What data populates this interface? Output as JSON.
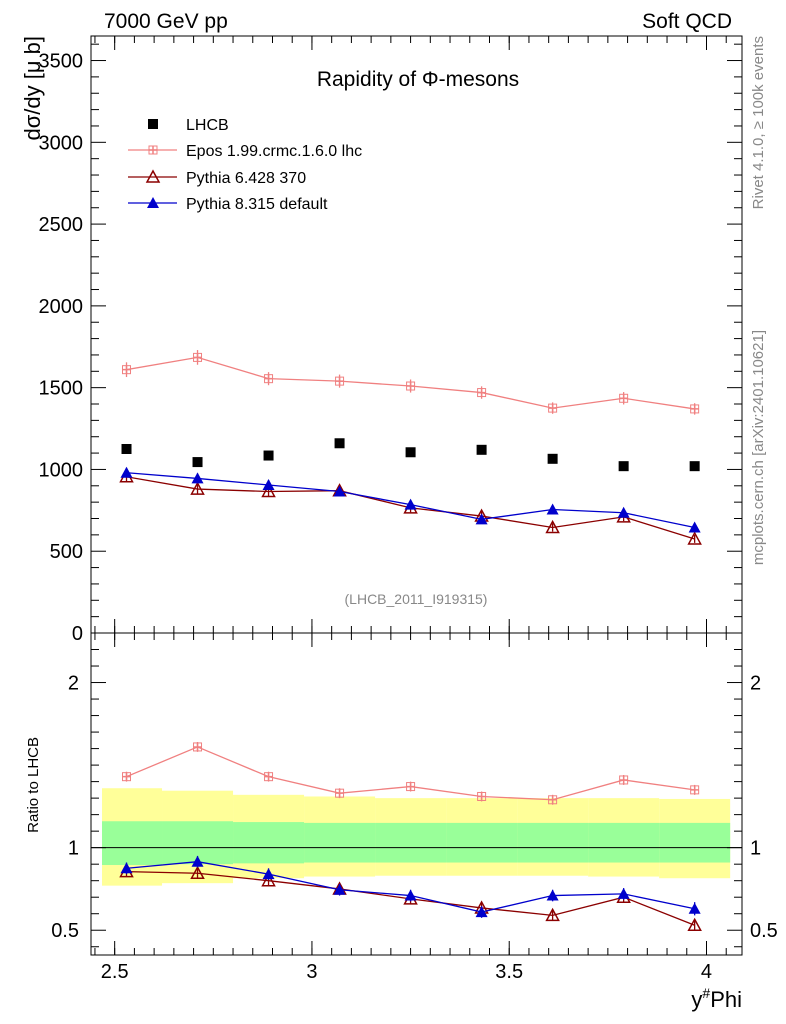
{
  "header": {
    "left": "7000 GeV pp",
    "right": "Soft QCD"
  },
  "side": {
    "rivet": "Rivet 4.1.0, ≥ 100k events",
    "mcplots": "mcplots.cern.ch [arXiv:2401.10621]"
  },
  "chart_data": {
    "type": "scatter",
    "title": "Rapidity of Φ-mesons",
    "ylabel": "dσ/dy [μ b]",
    "ratio_ylabel": "Ratio to LHCB",
    "xlabel": "y#Phi",
    "xlabel_base": "y",
    "xlabel_sup": "#",
    "xlabel_tail": "Phi",
    "analysis_id": "(LHCB_2011_I919315)",
    "xlim": [
      2.44,
      4.09
    ],
    "ylim": [
      0,
      3650
    ],
    "ratio_ylim": [
      0.35,
      2.3
    ],
    "x_ticks": [
      2.5,
      3,
      3.5,
      4
    ],
    "x_tick_labels": [
      "2.5",
      "3",
      "3.5",
      "4"
    ],
    "y_ticks": [
      0,
      500,
      1000,
      1500,
      2000,
      2500,
      3000,
      3500
    ],
    "y_tick_labels": [
      "0",
      "500",
      "1000",
      "1500",
      "2000",
      "2500",
      "3000",
      "3500"
    ],
    "ratio_ticks": [
      0.5,
      1,
      2
    ],
    "ratio_tick_labels": [
      "0.5",
      "1",
      "2"
    ],
    "bins": [
      2.44,
      2.62,
      2.8,
      2.98,
      3.16,
      3.34,
      3.52,
      3.7,
      3.88,
      4.06
    ],
    "x": [
      2.53,
      2.71,
      2.89,
      3.07,
      3.25,
      3.43,
      3.61,
      3.79,
      3.97
    ],
    "band_inner": [
      [
        0.895,
        1.16
      ],
      [
        0.9,
        1.16
      ],
      [
        0.905,
        1.155
      ],
      [
        0.91,
        1.15
      ],
      [
        0.91,
        1.15
      ],
      [
        0.91,
        1.15
      ],
      [
        0.91,
        1.15
      ],
      [
        0.91,
        1.15
      ],
      [
        0.91,
        1.15
      ]
    ],
    "band_outer": [
      [
        0.77,
        1.36
      ],
      [
        0.785,
        1.345
      ],
      [
        0.815,
        1.32
      ],
      [
        0.825,
        1.31
      ],
      [
        0.83,
        1.3
      ],
      [
        0.83,
        1.3
      ],
      [
        0.83,
        1.3
      ],
      [
        0.825,
        1.3
      ],
      [
        0.815,
        1.295
      ]
    ],
    "series": [
      {
        "name": "LHCB",
        "label": "LHCB",
        "color": "#000000",
        "marker": "square",
        "line": false,
        "values": [
          1125,
          1045,
          1085,
          1160,
          1105,
          1120,
          1065,
          1020,
          1020
        ],
        "errors": [
          0,
          0,
          0,
          0,
          0,
          0,
          0,
          0,
          0
        ],
        "ratio": [
          1,
          1,
          1,
          1,
          1,
          1,
          1,
          1,
          1
        ],
        "ratio_err": [
          0,
          0,
          0,
          0,
          0,
          0,
          0,
          0,
          0
        ]
      },
      {
        "name": "Epos",
        "label": "Epos 1.99.crmc.1.6.0 lhc",
        "color": "#f08080",
        "marker": "cross",
        "line": true,
        "values": [
          1610,
          1685,
          1555,
          1540,
          1510,
          1470,
          1375,
          1435,
          1370
        ],
        "errors": [
          45,
          45,
          40,
          40,
          40,
          38,
          35,
          38,
          35
        ],
        "ratio": [
          1.43,
          1.61,
          1.43,
          1.33,
          1.37,
          1.31,
          1.29,
          1.41,
          1.35
        ],
        "ratio_err": [
          0.03,
          0.03,
          0.03,
          0.03,
          0.03,
          0.03,
          0.03,
          0.03,
          0.03
        ]
      },
      {
        "name": "Pythia6",
        "label": "Pythia 6.428 370",
        "color": "#8b0000",
        "marker": "triangle-open",
        "line": true,
        "values": [
          955,
          880,
          865,
          870,
          765,
          715,
          645,
          710,
          575
        ],
        "errors": [
          30,
          28,
          28,
          28,
          27,
          27,
          25,
          26,
          24
        ],
        "ratio": [
          0.855,
          0.845,
          0.8,
          0.75,
          0.69,
          0.635,
          0.59,
          0.7,
          0.53
        ],
        "ratio_err": [
          0.03,
          0.03,
          0.03,
          0.03,
          0.03,
          0.03,
          0.03,
          0.03,
          0.03
        ]
      },
      {
        "name": "Pythia8",
        "label": "Pythia 8.315 default",
        "color": "#0000cc",
        "marker": "triangle",
        "line": true,
        "values": [
          980,
          945,
          905,
          865,
          785,
          695,
          755,
          735,
          645
        ],
        "errors": [
          30,
          30,
          30,
          29,
          28,
          27,
          28,
          28,
          28
        ],
        "ratio": [
          0.875,
          0.915,
          0.84,
          0.745,
          0.71,
          0.61,
          0.71,
          0.72,
          0.63
        ],
        "ratio_err": [
          0.035,
          0.035,
          0.035,
          0.035,
          0.035,
          0.035,
          0.035,
          0.035,
          0.04
        ]
      }
    ]
  }
}
